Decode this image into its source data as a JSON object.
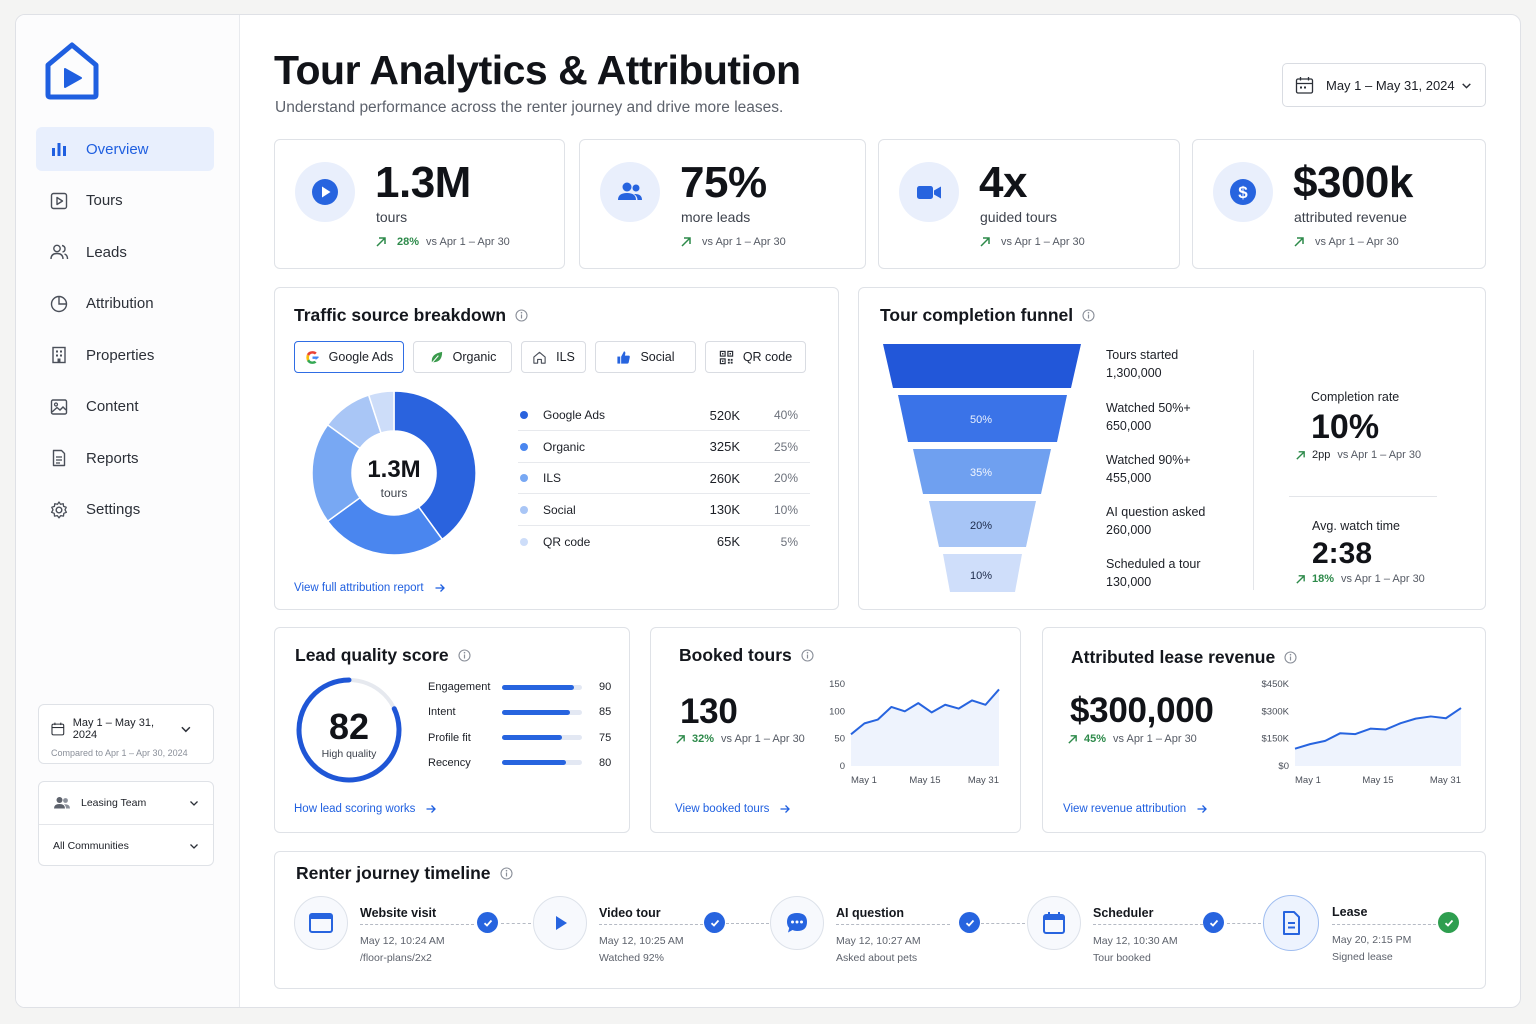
{
  "header": {
    "title": "Tour Analytics & Attribution",
    "subtitle": "Understand performance across the renter journey and drive more leases.",
    "date_range": "May 1 – May 31, 2024"
  },
  "sidebar": {
    "items": [
      {
        "label": "Overview",
        "icon": "bar-chart-icon",
        "active": true
      },
      {
        "label": "Tours",
        "icon": "play-square-icon"
      },
      {
        "label": "Leads",
        "icon": "users-icon"
      },
      {
        "label": "Attribution",
        "icon": "pie-chart-icon"
      },
      {
        "label": "Properties",
        "icon": "building-icon"
      },
      {
        "label": "Content",
        "icon": "image-icon"
      },
      {
        "label": "Reports",
        "icon": "document-icon"
      },
      {
        "label": "Settings",
        "icon": "gear-icon"
      }
    ],
    "date_filter": {
      "label": "May 1 – May 31, 2024",
      "compare": "Compared to Apr 1 – Apr 30, 2024"
    },
    "team_filter": "Leasing Team",
    "community_filter": "All Communities"
  },
  "kpis": [
    {
      "value": "1.3M",
      "label": "tours",
      "change": "28%",
      "compare": "vs Apr 1 – Apr 30",
      "icon": "play-icon"
    },
    {
      "value": "75%",
      "label": "more leads",
      "change": "",
      "compare": "vs Apr 1 – Apr 30",
      "icon": "users-icon"
    },
    {
      "value": "4x",
      "label": "guided tours",
      "change": "",
      "compare": "vs Apr 1 – Apr 30",
      "icon": "video-camera-icon"
    },
    {
      "value": "$300k",
      "label": "attributed revenue",
      "change": "",
      "compare": "vs Apr 1 – Apr 30",
      "icon": "dollar-icon"
    }
  ],
  "traffic": {
    "title": "Traffic source breakdown",
    "chips": [
      "Google Ads",
      "Organic",
      "ILS",
      "Social",
      "QR code"
    ],
    "center_value": "1.3M",
    "center_label": "tours",
    "link": "View full attribution report",
    "rows": [
      {
        "name": "Google Ads",
        "value": "520K",
        "pct": "40%",
        "share": 40,
        "color": "#2a63de"
      },
      {
        "name": "Organic",
        "value": "325K",
        "pct": "25%",
        "share": 25,
        "color": "#4a86ef"
      },
      {
        "name": "ILS",
        "value": "260K",
        "pct": "20%",
        "share": 20,
        "color": "#78a8f3"
      },
      {
        "name": "Social",
        "value": "130K",
        "pct": "10%",
        "share": 10,
        "color": "#a9c6f6"
      },
      {
        "name": "QR code",
        "value": "65K",
        "pct": "5%",
        "share": 5,
        "color": "#cdddf9"
      }
    ]
  },
  "funnel": {
    "title": "Tour completion funnel",
    "stages": [
      {
        "name": "Tours started",
        "value": "1,300,000",
        "pct_label": ""
      },
      {
        "name": "Watched 50%+",
        "value": "650,000",
        "pct_label": "50%"
      },
      {
        "name": "Watched 90%+",
        "value": "455,000",
        "pct_label": "35%"
      },
      {
        "name": "AI question asked",
        "value": "260,000",
        "pct_label": "20%"
      },
      {
        "name": "Scheduled a tour",
        "value": "130,000",
        "pct_label": "10%"
      }
    ],
    "completion": {
      "label": "Completion rate",
      "value": "10%",
      "change": "2pp",
      "compare": "vs Apr 1 – Apr 30"
    },
    "watch_time": {
      "label": "Avg. watch time",
      "value": "2:38",
      "change": "18%",
      "compare": "vs Apr 1 – Apr 30"
    }
  },
  "lead_quality": {
    "title": "Lead quality score",
    "score": "82",
    "score_fraction": 0.82,
    "score_label": "High quality",
    "link": "How lead scoring works",
    "factors": [
      {
        "name": "Engagement",
        "value": 90
      },
      {
        "name": "Intent",
        "value": 85
      },
      {
        "name": "Profile fit",
        "value": 75
      },
      {
        "name": "Recency",
        "value": 80
      }
    ]
  },
  "booked": {
    "title": "Booked tours",
    "value": "130",
    "change": "32%",
    "compare": "vs Apr 1 – Apr 30",
    "link": "View booked tours"
  },
  "revenue": {
    "title": "Attributed lease revenue",
    "value": "$300,000",
    "change": "45%",
    "compare": "vs Apr 1 – Apr 30",
    "link": "View revenue attribution"
  },
  "chart_data": [
    {
      "type": "line",
      "title": "Booked tours",
      "x": [
        "May 1",
        "",
        "",
        "",
        "",
        "",
        "",
        "",
        "",
        "",
        "",
        "May 31"
      ],
      "xticks": [
        "May 1",
        "May 15",
        "May 31"
      ],
      "yticks": [
        "150",
        "100",
        "50",
        "0"
      ],
      "ylim": [
        0,
        150
      ],
      "series": [
        {
          "values": [
            58,
            78,
            85,
            108,
            100,
            115,
            98,
            112,
            105,
            120,
            112,
            140
          ]
        }
      ]
    },
    {
      "type": "line",
      "title": "Attributed lease revenue",
      "x": [
        "May 1",
        "",
        "",
        "",
        "",
        "",
        "",
        "",
        "",
        "",
        "",
        "May 31"
      ],
      "xticks": [
        "May 1",
        "May 15",
        "May 31"
      ],
      "yticks": [
        "$450K",
        "$300K",
        "$150K",
        "$0"
      ],
      "ylim": [
        0,
        450
      ],
      "series": [
        {
          "values": [
            95,
            120,
            138,
            180,
            175,
            205,
            200,
            235,
            260,
            272,
            262,
            318
          ]
        }
      ]
    }
  ],
  "timeline": {
    "title": "Renter journey timeline",
    "steps": [
      {
        "title": "Website visit",
        "time": "May 12, 10:24 AM",
        "detail": "/floor-plans/2x2",
        "icon": "browser-icon"
      },
      {
        "title": "Video tour",
        "time": "May 12, 10:25 AM",
        "detail": "Watched 92%",
        "icon": "play-icon"
      },
      {
        "title": "AI question",
        "time": "May 12, 10:27 AM",
        "detail": "Asked about pets",
        "icon": "chat-bubble-icon"
      },
      {
        "title": "Scheduler",
        "time": "May 12, 10:30 AM",
        "detail": "Tour booked",
        "icon": "calendar-icon"
      },
      {
        "title": "Lease",
        "time": "May 20, 2:15 PM",
        "detail": "Signed lease",
        "icon": "document-icon"
      }
    ]
  },
  "colors": {
    "accent": "#2764df",
    "positive": "#2d8a4a",
    "lease_check": "#2e9e4f"
  }
}
